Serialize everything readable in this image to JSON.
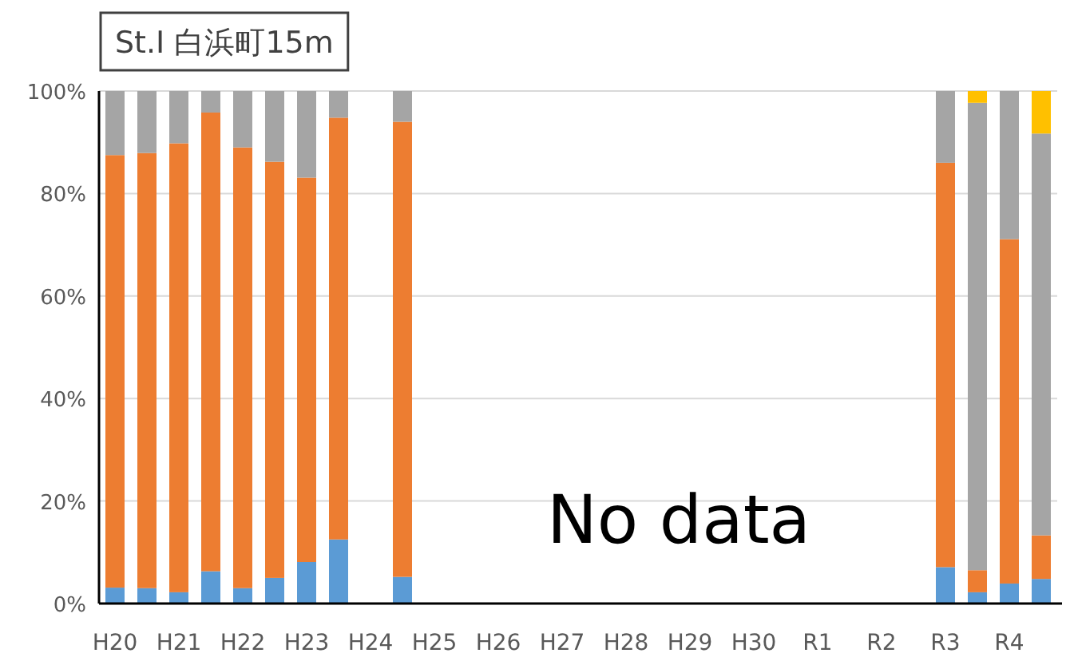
{
  "chart_data": {
    "type": "bar",
    "stacked": true,
    "title": "St.I 白浜町15m",
    "categories": [
      "H20",
      null,
      "H21",
      null,
      "H22",
      null,
      "H23",
      null,
      "H24",
      null,
      "H25",
      null,
      "H26",
      null,
      "H27",
      null,
      "H28",
      null,
      "H29",
      null,
      "H30",
      null,
      "R1",
      null,
      "R2",
      null,
      "R3",
      null,
      "R4",
      null
    ],
    "series": [
      {
        "color": "#5b9bd5",
        "values": [
          3.1,
          3.0,
          2.2,
          6.3,
          3.0,
          5.0,
          8.1,
          12.5,
          null,
          5.2,
          null,
          null,
          null,
          null,
          null,
          null,
          null,
          null,
          null,
          null,
          null,
          null,
          null,
          null,
          null,
          null,
          7.1,
          2.2,
          3.9,
          4.8
        ]
      },
      {
        "color": "#ed7d31",
        "values": [
          84.4,
          84.9,
          87.6,
          89.5,
          86.0,
          81.2,
          75.0,
          82.3,
          null,
          88.8,
          null,
          null,
          null,
          null,
          null,
          null,
          null,
          null,
          null,
          null,
          null,
          null,
          null,
          null,
          null,
          null,
          78.9,
          4.3,
          67.2,
          8.5
        ]
      },
      {
        "color": "#a5a5a5",
        "values": [
          12.5,
          12.1,
          10.2,
          4.2,
          11.0,
          13.8,
          16.9,
          5.2,
          null,
          6.0,
          null,
          null,
          null,
          null,
          null,
          null,
          null,
          null,
          null,
          null,
          null,
          null,
          null,
          null,
          null,
          null,
          14.0,
          91.2,
          28.9,
          78.4
        ]
      },
      {
        "color": "#ffc000",
        "values": [
          null,
          null,
          null,
          null,
          null,
          null,
          null,
          null,
          null,
          null,
          null,
          null,
          null,
          null,
          null,
          null,
          null,
          null,
          null,
          null,
          null,
          null,
          null,
          null,
          null,
          null,
          null,
          2.3,
          null,
          8.3
        ]
      }
    ],
    "ylim": [
      0,
      100
    ],
    "yticks": [
      {
        "value": 0,
        "label": "0%"
      },
      {
        "value": 20,
        "label": "20%"
      },
      {
        "value": 40,
        "label": "40%"
      },
      {
        "value": 60,
        "label": "60%"
      },
      {
        "value": 80,
        "label": "80%"
      },
      {
        "value": 100,
        "label": "100%"
      }
    ],
    "grid": "y",
    "annotations": [
      "No data"
    ]
  }
}
